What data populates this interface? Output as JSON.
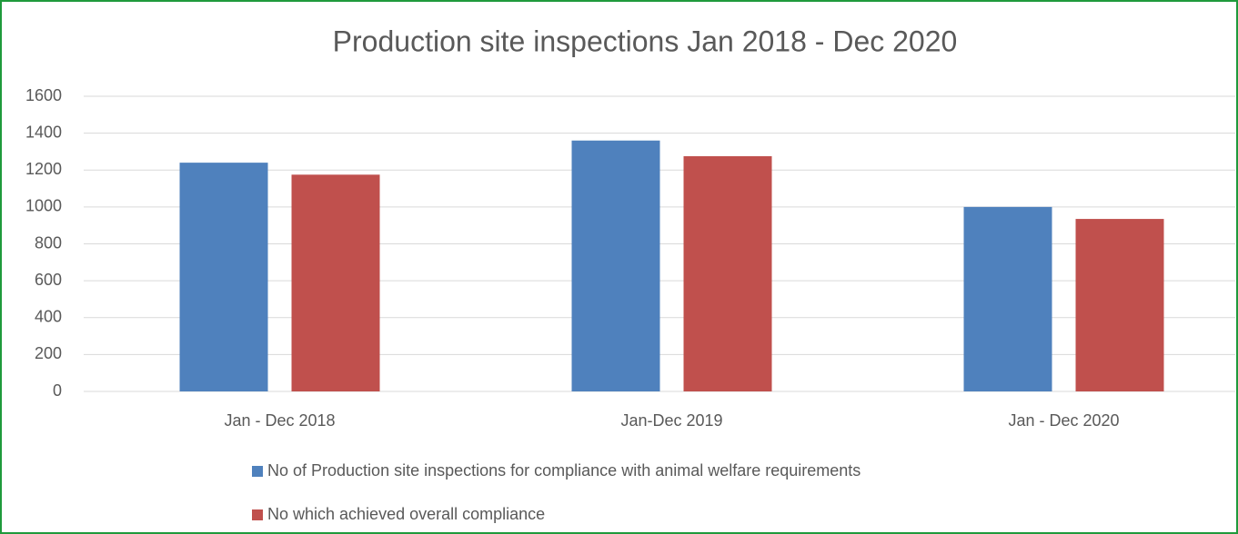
{
  "chart_data": {
    "type": "bar",
    "title": "Production site inspections Jan 2018 - Dec 2020",
    "categories": [
      "Jan - Dec 2018",
      "Jan-Dec 2019",
      "Jan - Dec 2020"
    ],
    "series": [
      {
        "name": "No of Production site inspections for compliance with animal welfare requirements",
        "color": "#4f81bd",
        "values": [
          1240,
          1360,
          1000
        ]
      },
      {
        "name": "No which achieved overall compliance",
        "color": "#c0504d",
        "values": [
          1175,
          1275,
          935
        ]
      }
    ],
    "ylim": [
      0,
      1600
    ],
    "yticks": [
      0,
      200,
      400,
      600,
      800,
      1000,
      1200,
      1400,
      1600
    ],
    "grid": true,
    "legend": "bottom"
  }
}
